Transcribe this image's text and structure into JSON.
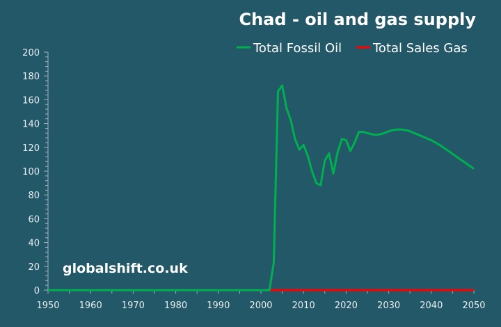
{
  "chart_data": {
    "type": "line",
    "title": "Chad - oil and gas supply",
    "watermark": "globalshift.co.uk",
    "xlabel": "",
    "ylabel": "",
    "xlim": [
      1950,
      2050
    ],
    "ylim": [
      0,
      200
    ],
    "x_ticks": [
      "1950",
      "1960",
      "1970",
      "1980",
      "1990",
      "2000",
      "2010",
      "2020",
      "2030",
      "2040",
      "2050"
    ],
    "y_ticks": [
      "0",
      "20",
      "40",
      "60",
      "80",
      "100",
      "120",
      "140",
      "160",
      "180",
      "200"
    ],
    "grid": false,
    "legend": "top-right",
    "series": [
      {
        "name": "Total Fossil Oil",
        "color": "#00b050",
        "points": [
          [
            1950,
            0
          ],
          [
            2002,
            0
          ],
          [
            2003,
            23
          ],
          [
            2004,
            167
          ],
          [
            2005,
            172
          ],
          [
            2006,
            153
          ],
          [
            2007,
            143
          ],
          [
            2008,
            127
          ],
          [
            2009,
            118
          ],
          [
            2010,
            122
          ],
          [
            2011,
            113
          ],
          [
            2012,
            100
          ],
          [
            2013,
            90
          ],
          [
            2014,
            88
          ],
          [
            2015,
            109
          ],
          [
            2016,
            115
          ],
          [
            2017,
            98
          ],
          [
            2018,
            116
          ],
          [
            2019,
            127
          ],
          [
            2020,
            126
          ],
          [
            2021,
            117
          ],
          [
            2022,
            124
          ],
          [
            2023,
            133
          ],
          [
            2024,
            133
          ],
          [
            2025,
            132
          ],
          [
            2026,
            131
          ],
          [
            2027,
            130.5
          ],
          [
            2028,
            131
          ],
          [
            2029,
            132
          ],
          [
            2030,
            133.5
          ],
          [
            2031,
            134.5
          ],
          [
            2032,
            135
          ],
          [
            2033,
            135
          ],
          [
            2034,
            134.5
          ],
          [
            2035,
            133.5
          ],
          [
            2036,
            132
          ],
          [
            2037,
            130.5
          ],
          [
            2038,
            129
          ],
          [
            2039,
            127.5
          ],
          [
            2040,
            126
          ],
          [
            2041,
            124
          ],
          [
            2042,
            122
          ],
          [
            2043,
            119.5
          ],
          [
            2044,
            117
          ],
          [
            2045,
            114.5
          ],
          [
            2046,
            112
          ],
          [
            2047,
            109.5
          ],
          [
            2048,
            107
          ],
          [
            2049,
            104.5
          ],
          [
            2050,
            102
          ]
        ]
      },
      {
        "name": "Total Sales Gas",
        "color": "#ff0000",
        "points": [
          [
            1950,
            0
          ],
          [
            2050,
            0
          ]
        ]
      }
    ]
  }
}
